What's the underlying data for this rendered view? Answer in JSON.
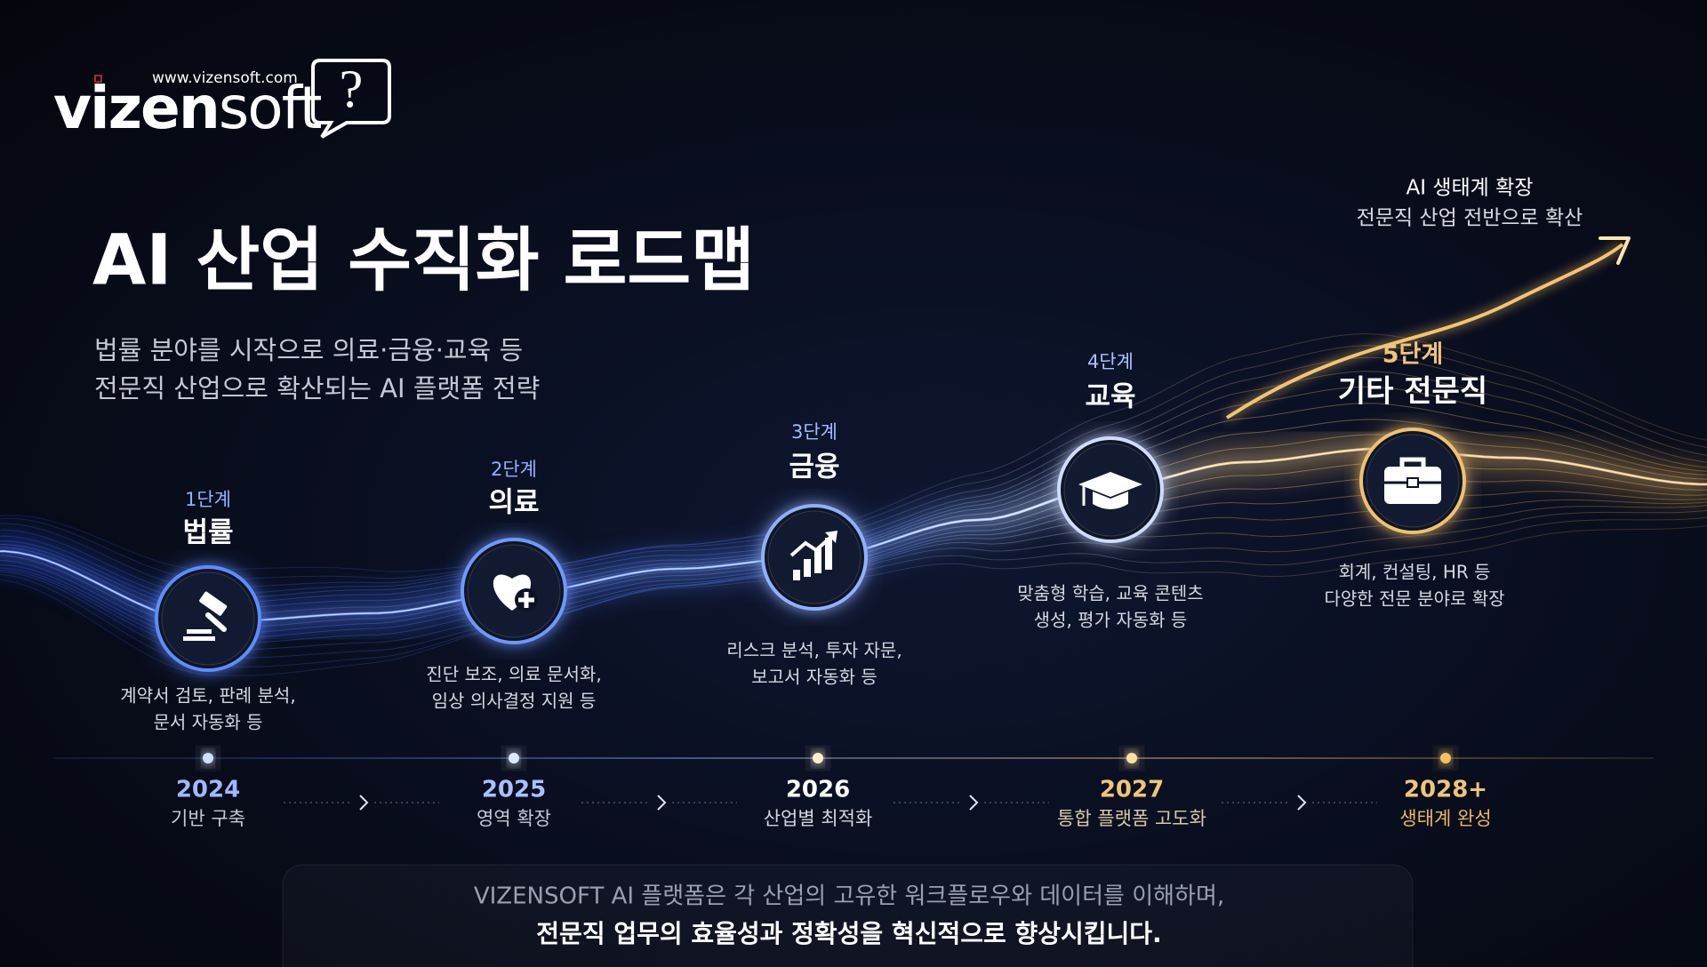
{
  "logo": {
    "url": "www.vizensoft.com",
    "name_bold": "vizen",
    "name_light": "soft",
    "mark": "?"
  },
  "title": "AI 산업 수직화 로드맵",
  "subtitle": [
    "법률 분야를 시작으로 의료·금융·교육 등",
    "전문직 산업으로 확산되는 AI 플랫폼 전략"
  ],
  "annotation": [
    "AI 생태계 확장",
    "전문직 산업 전반으로 확산"
  ],
  "stages": [
    {
      "step": "1단계",
      "name": "법률",
      "description": [
        "계약서 검토, 판례 분석,",
        "문서 자동화 등"
      ]
    },
    {
      "step": "2단계",
      "name": "의료",
      "description": [
        "진단 보조, 의료 문서화,",
        "임상 의사결정 지원 등"
      ]
    },
    {
      "step": "3단계",
      "name": "금융",
      "description": [
        "리스크 분석, 투자 자문,",
        "보고서 자동화 등"
      ]
    },
    {
      "step": "4단계",
      "name": "교육",
      "description": [
        "맞춤형 학습, 교육 콘텐츠",
        "생성, 평가 자동화 등"
      ]
    },
    {
      "step": "5단계",
      "name": "기타 전문직",
      "description": [
        "회계, 컨설팅, HR 등",
        "다양한 전문 분야로 확장"
      ]
    }
  ],
  "timeline": [
    {
      "year": "2024",
      "label": "기반 구축"
    },
    {
      "year": "2025",
      "label": "영역 확장"
    },
    {
      "year": "2026",
      "label": "산업별 최적화"
    },
    {
      "year": "2027",
      "label": "통합 플랫폼 고도화"
    },
    {
      "year": "2028+",
      "label": "생태계 완성"
    }
  ],
  "footer": [
    "VIZENSOFT AI 플랫폼은 각 산업의 고유한 워크플로우와 데이터를 이해하며,",
    "전문직 업무의 효율성과 정확성을 혁신적으로 향상시킵니다."
  ]
}
